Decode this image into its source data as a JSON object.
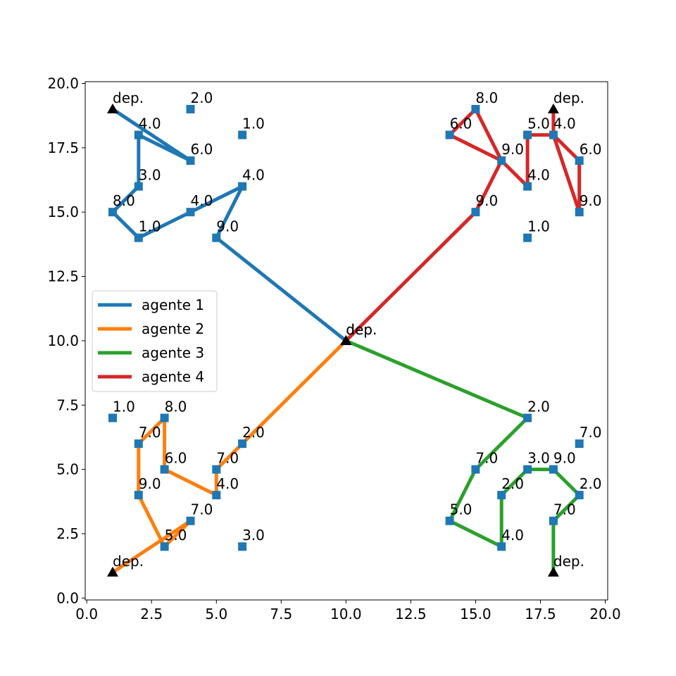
{
  "chart_data": {
    "type": "scatter",
    "title": "",
    "xlabel": "",
    "ylabel": "",
    "xlim": [
      0.0,
      20.0
    ],
    "ylim": [
      0.0,
      20.0
    ],
    "xticks": [
      0.0,
      2.5,
      5.0,
      7.5,
      10.0,
      12.5,
      15.0,
      17.5,
      20.0
    ],
    "yticks": [
      0.0,
      2.5,
      5.0,
      7.5,
      10.0,
      12.5,
      15.0,
      17.5,
      20.0
    ],
    "xtick_labels": [
      "0.0",
      "2.5",
      "5.0",
      "7.5",
      "10.0",
      "12.5",
      "15.0",
      "17.5",
      "20.0"
    ],
    "ytick_labels": [
      "0.0",
      "2.5",
      "5.0",
      "7.5",
      "10.0",
      "12.5",
      "15.0",
      "17.5",
      "20.0"
    ],
    "grid": false,
    "legend_position": "center-left",
    "colors": {
      "customer": "#1f77b4",
      "depot": "#000000"
    },
    "depots": [
      {
        "x": 10,
        "y": 10,
        "label": "dep."
      },
      {
        "x": 10,
        "y": 10,
        "label": "dep."
      },
      {
        "x": 1,
        "y": 19,
        "label": "dep."
      },
      {
        "x": 18,
        "y": 19,
        "label": "dep."
      },
      {
        "x": 1,
        "y": 1,
        "label": "dep."
      },
      {
        "x": 18,
        "y": 1,
        "label": "dep."
      }
    ],
    "customers": [
      {
        "x": 4,
        "y": 19,
        "label": "2.0"
      },
      {
        "x": 6,
        "y": 18,
        "label": "1.0"
      },
      {
        "x": 2,
        "y": 18,
        "label": "4.0"
      },
      {
        "x": 4,
        "y": 17,
        "label": "6.0"
      },
      {
        "x": 2,
        "y": 16,
        "label": "3.0"
      },
      {
        "x": 6,
        "y": 16,
        "label": "4.0"
      },
      {
        "x": 1,
        "y": 15,
        "label": "8.0"
      },
      {
        "x": 4,
        "y": 15,
        "label": "4.0"
      },
      {
        "x": 2,
        "y": 14,
        "label": "1.0"
      },
      {
        "x": 5,
        "y": 14,
        "label": "9.0"
      },
      {
        "x": 15,
        "y": 19,
        "label": "8.0"
      },
      {
        "x": 14,
        "y": 18,
        "label": "6.0"
      },
      {
        "x": 17,
        "y": 18,
        "label": "5.0"
      },
      {
        "x": 18,
        "y": 18,
        "label": "4.0"
      },
      {
        "x": 16,
        "y": 17,
        "label": "9.0"
      },
      {
        "x": 19,
        "y": 17,
        "label": "6.0"
      },
      {
        "x": 17,
        "y": 16,
        "label": "4.0"
      },
      {
        "x": 15,
        "y": 15,
        "label": "9.0"
      },
      {
        "x": 19,
        "y": 15,
        "label": "9.0"
      },
      {
        "x": 17,
        "y": 14,
        "label": "1.0"
      },
      {
        "x": 1,
        "y": 7,
        "label": "1.0"
      },
      {
        "x": 3,
        "y": 7,
        "label": "8.0"
      },
      {
        "x": 2,
        "y": 6,
        "label": "7.0"
      },
      {
        "x": 6,
        "y": 6,
        "label": "2.0"
      },
      {
        "x": 3,
        "y": 5,
        "label": "6.0"
      },
      {
        "x": 5,
        "y": 5,
        "label": "7.0"
      },
      {
        "x": 2,
        "y": 4,
        "label": "9.0"
      },
      {
        "x": 5,
        "y": 4,
        "label": "4.0"
      },
      {
        "x": 4,
        "y": 3,
        "label": "7.0"
      },
      {
        "x": 3,
        "y": 2,
        "label": "5.0"
      },
      {
        "x": 6,
        "y": 2,
        "label": "3.0"
      },
      {
        "x": 17,
        "y": 7,
        "label": "2.0"
      },
      {
        "x": 19,
        "y": 6,
        "label": "7.0"
      },
      {
        "x": 15,
        "y": 5,
        "label": "7.0"
      },
      {
        "x": 17,
        "y": 5,
        "label": "3.0"
      },
      {
        "x": 18,
        "y": 5,
        "label": "9.0"
      },
      {
        "x": 16,
        "y": 4,
        "label": "2.0"
      },
      {
        "x": 19,
        "y": 4,
        "label": "2.0"
      },
      {
        "x": 14,
        "y": 3,
        "label": "5.0"
      },
      {
        "x": 18,
        "y": 3,
        "label": "7.0"
      },
      {
        "x": 16,
        "y": 2,
        "label": "4.0"
      }
    ],
    "series": [
      {
        "name": "agente 1",
        "color": "#1f77b4",
        "x": [
          10,
          5,
          6,
          4,
          2,
          1,
          2,
          2,
          4,
          1
        ],
        "y": [
          10,
          14,
          16,
          15,
          14,
          15,
          16,
          18,
          17,
          19
        ]
      },
      {
        "name": "agente 2",
        "color": "#ff7f0e",
        "x": [
          10,
          6,
          5,
          5,
          3,
          3,
          2,
          2,
          3,
          4,
          1
        ],
        "y": [
          10,
          6,
          5,
          4,
          5,
          7,
          6,
          4,
          2,
          3,
          1
        ]
      },
      {
        "name": "agente 3",
        "color": "#2ca02c",
        "x": [
          10,
          17,
          15,
          14,
          16,
          16,
          17,
          18,
          19,
          18,
          18
        ],
        "y": [
          10,
          7,
          5,
          3,
          2,
          4,
          5,
          5,
          4,
          3,
          1
        ]
      },
      {
        "name": "agente 4",
        "color": "#d62728",
        "x": [
          10,
          15,
          16,
          15,
          14,
          16,
          17,
          17,
          18,
          19,
          19,
          18,
          18
        ],
        "y": [
          10,
          15,
          17,
          19,
          18,
          17,
          16,
          18,
          18,
          17,
          15,
          18,
          19
        ]
      }
    ]
  }
}
